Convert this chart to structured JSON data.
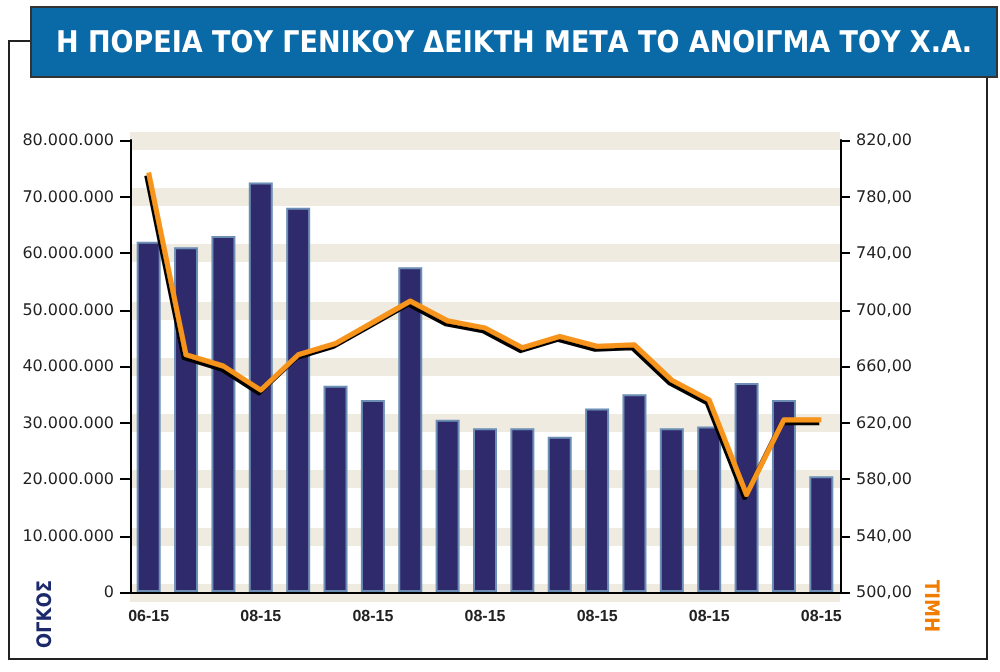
{
  "chart_data": {
    "type": "bar",
    "title": "Η ΠΟΡΕΙΑ ΤΟΥ ΓΕΝΙΚΟΥ ΔΕΙΚΤΗ ΜΕΤΑ ΤΟ ΑΝΟΙΓΜΑ ΤΟΥ Χ.Α.",
    "ylabel": "ΟΓΚΟΣ",
    "y2label": "ΤΙΜΗ",
    "categories": [
      "06-15",
      null,
      null,
      "08-15",
      null,
      null,
      "08-15",
      null,
      null,
      "08-15",
      null,
      null,
      "08-15",
      null,
      null,
      "08-15",
      null,
      null,
      "08-15"
    ],
    "series": [
      {
        "color": "#2e2a6b",
        "values": [
          62000000,
          61000000,
          63000000,
          72500000,
          68000000,
          36500000,
          34000000,
          57500000,
          30500000,
          29000000,
          29000000,
          27500000,
          32500000,
          35000000,
          29000000,
          29300000,
          37000000,
          34000000,
          20500000
        ]
      },
      {
        "type": "line",
        "axis": "y2",
        "color": "#f7941d",
        "values": [
          797,
          668,
          660,
          643,
          668,
          676,
          691,
          706,
          692,
          687,
          673,
          681,
          674,
          675,
          650,
          636,
          569,
          622,
          622
        ]
      }
    ],
    "ylim": [
      0,
      80000000
    ],
    "yticks": [
      {
        "value": 0,
        "label": "0"
      },
      {
        "value": 10000000,
        "label": "10.000.000"
      },
      {
        "value": 20000000,
        "label": "20.000.000"
      },
      {
        "value": 30000000,
        "label": "30.000.000"
      },
      {
        "value": 40000000,
        "label": "40.000.000"
      },
      {
        "value": 50000000,
        "label": "50.000.000"
      },
      {
        "value": 60000000,
        "label": "60.000.000"
      },
      {
        "value": 70000000,
        "label": "70.000.000"
      },
      {
        "value": 80000000,
        "label": "80.000.000"
      }
    ],
    "y2lim": [
      500,
      820
    ],
    "y2ticks": [
      {
        "value": 500,
        "label": "500,00"
      },
      {
        "value": 540,
        "label": "540,00"
      },
      {
        "value": 580,
        "label": "580,00"
      },
      {
        "value": 620,
        "label": "620,00"
      },
      {
        "value": 660,
        "label": "660,00"
      },
      {
        "value": 700,
        "label": "700,00"
      },
      {
        "value": 740,
        "label": "740,00"
      },
      {
        "value": 780,
        "label": "780,00"
      },
      {
        "value": 820,
        "label": "820,00"
      }
    ],
    "grid": "y",
    "marker": "none",
    "line_style": "solid"
  }
}
